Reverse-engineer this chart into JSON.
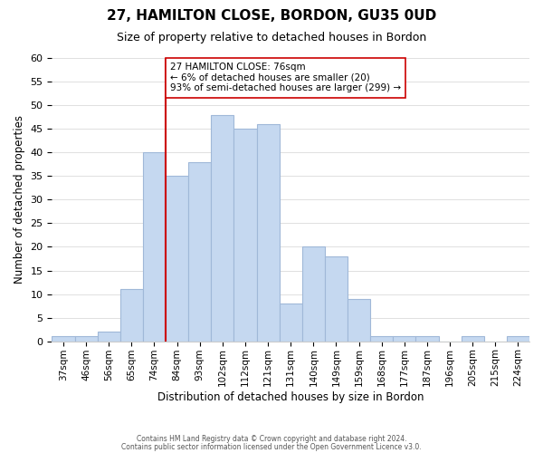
{
  "title": "27, HAMILTON CLOSE, BORDON, GU35 0UD",
  "subtitle": "Size of property relative to detached houses in Bordon",
  "xlabel": "Distribution of detached houses by size in Bordon",
  "ylabel": "Number of detached properties",
  "bin_labels": [
    "37sqm",
    "46sqm",
    "56sqm",
    "65sqm",
    "74sqm",
    "84sqm",
    "93sqm",
    "102sqm",
    "112sqm",
    "121sqm",
    "131sqm",
    "140sqm",
    "149sqm",
    "159sqm",
    "168sqm",
    "177sqm",
    "187sqm",
    "196sqm",
    "205sqm",
    "215sqm",
    "224sqm"
  ],
  "bar_heights": [
    1,
    1,
    2,
    11,
    40,
    35,
    38,
    48,
    45,
    46,
    8,
    20,
    18,
    9,
    1,
    1,
    1,
    0,
    1,
    0,
    1
  ],
  "bar_color": "#c5d8f0",
  "bar_edge_color": "#a0b8d8",
  "vline_x_index": 4,
  "vline_color": "#cc0000",
  "annotation_text": "27 HAMILTON CLOSE: 76sqm\n← 6% of detached houses are smaller (20)\n93% of semi-detached houses are larger (299) →",
  "annotation_box_color": "#ffffff",
  "annotation_box_edge": "#cc0000",
  "ylim": [
    0,
    60
  ],
  "yticks": [
    0,
    5,
    10,
    15,
    20,
    25,
    30,
    35,
    40,
    45,
    50,
    55,
    60
  ],
  "footer1": "Contains HM Land Registry data © Crown copyright and database right 2024.",
  "footer2": "Contains public sector information licensed under the Open Government Licence v3.0.",
  "background_color": "#ffffff",
  "grid_color": "#e0e0e0"
}
